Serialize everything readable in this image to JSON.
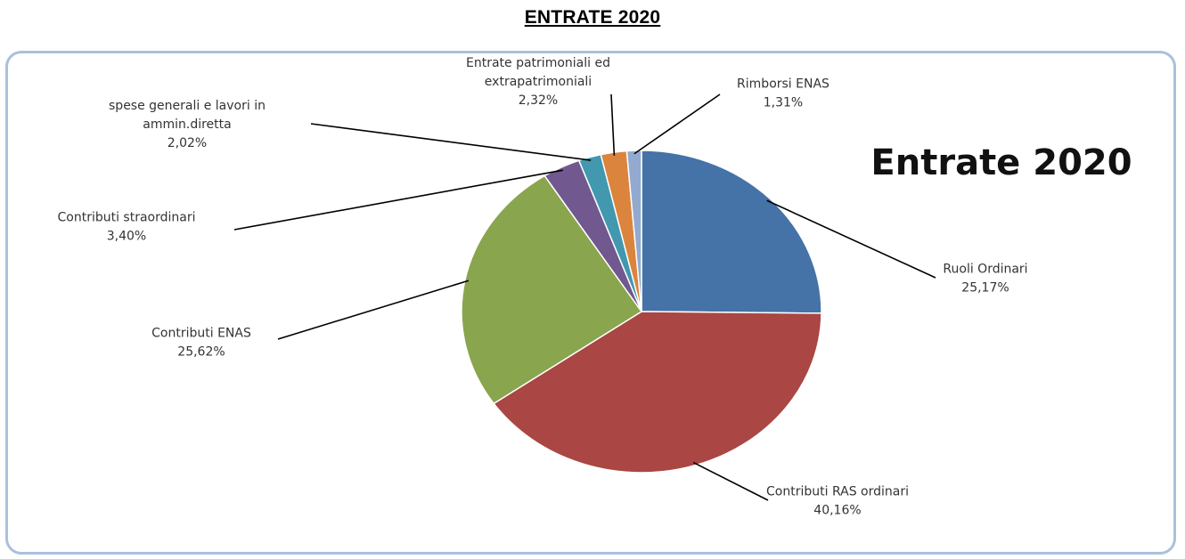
{
  "heading": "ENTRATE 2020",
  "chart_data": {
    "type": "pie",
    "title": "Entrate 2020",
    "slices": [
      {
        "label": [
          "Ruoli Ordinari"
        ],
        "value": 25.17,
        "value_label": "25,17%",
        "color": "#4572a7"
      },
      {
        "label": [
          "Contributi RAS ordinari"
        ],
        "value": 40.16,
        "value_label": "40,16%",
        "color": "#aa4643"
      },
      {
        "label": [
          "Contributi ENAS"
        ],
        "value": 25.62,
        "value_label": "25,62%",
        "color": "#89a54e"
      },
      {
        "label": [
          "Contributi  straordinari"
        ],
        "value": 3.4,
        "value_label": "3,40%",
        "color": "#71588f"
      },
      {
        "label": [
          "spese generali e  lavori in",
          "ammin.diretta"
        ],
        "value": 2.02,
        "value_label": "2,02%",
        "color": "#4198af"
      },
      {
        "label": [
          "Entrate patrimoniali ed",
          "extrapatrimoniali"
        ],
        "value": 2.32,
        "value_label": "2,32%",
        "color": "#db843d"
      },
      {
        "label": [
          "Rimborsi ENAS"
        ],
        "value": 1.31,
        "value_label": "1,31%",
        "color": "#93a9cf"
      }
    ]
  }
}
